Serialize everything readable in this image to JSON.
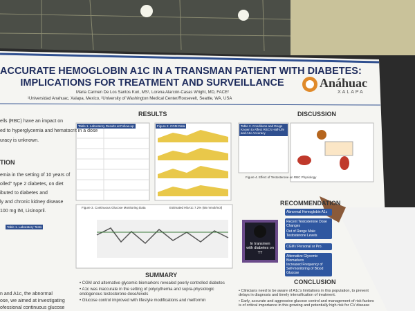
{
  "poster": {
    "title_line1": "ACCURATE HEMOGLOBIN A1C IN A TRANSMAN PATIENT WITH DIABETES:",
    "title_line2": "IMPLICATIONS FOR TREATMENT AND SURVEILLANCE",
    "authors": "Maria Carmen De Los Santos Kuri, MS¹, Lorena Alarcón-Casas Wright, MD, FACE²",
    "affiliations": "¹Universidad Anahuac, Xalapa, Mexico, ²University of Washington Medical Center/Roosevelt, Seattle, WA, USA",
    "logo": {
      "name": "Anáhuac",
      "campus": "XALAPA"
    },
    "intro_fragments": [
      "ells (RBC) have an impact on",
      "ed to hyperglycemia and hematocrit in a dose",
      "uracy is unknown."
    ],
    "case_heading": "TION",
    "case_fragments": [
      "emia in the setting of 10 years of",
      "olled\" type 2 diabetes, on diet",
      "ibuted to diabetes and",
      "ly and chronic kidney disease",
      "100 mg IM, Lisinopril."
    ],
    "left_table_caption": "Table 1. Laboratory Tests",
    "aim_fragments": [
      "n and A1c, the abnormal",
      "ose, we aimed at investigating",
      "ofessional continuous glucose"
    ],
    "sections": {
      "results": "RESULTS",
      "discussion": "DISCUSSION",
      "recommendations": "RECOMMENDATION",
      "summary": "SUMMARY",
      "conclusion": "CONCLUSION"
    },
    "figures": {
      "lab_table": "Table 1. Laboratory Results at Follow-up",
      "cgm_small": "Figure 2. CGM Data",
      "cgm_large": "Figure 3. Continuous Glucose Monitoring Data",
      "estimated_a1c": "Estimated HbA1c 7.2% (56 mmol/mol)",
      "conditions_table": "Table 2. Conditions and Drugs Known to Affect RBC's Half-Life and A1c Accuracy",
      "rbc_figure": "Figure 4. Effect of Testosterone on RBC Physiology"
    },
    "summary_bullets": [
      "CGM and alternative glycemic biomarkers revealed poorly controlled diabetes",
      "A1c was inaccurate in the setting of polycythemia and supra-physiologic endogenous testosterone dose/levels",
      "Glucose control improved with lifestyle modifications and metformin"
    ],
    "photo_caption": "In transmen with diabetes on TT",
    "recommendation_boxes": [
      "Abnormal Hemoglobin A1c",
      "Recent Testosterone Dose Changes",
      "Out of Range Male Testosterone Levels",
      "CGM / Personal or Pro.",
      "Alternative Glycemic Biomarkers",
      "Increased Frequency of Self-monitoring of Blood Glucose"
    ],
    "conclusion_bullets": [
      "Clinicians need to be aware of A1c's limitations in this population, to prevent delays in diagnosis and timely intensification of treatment.",
      "Early, accurate and aggressive glucose control and management of risk factors is of critical importance in this growing and potentially high risk for CV disease"
    ]
  }
}
